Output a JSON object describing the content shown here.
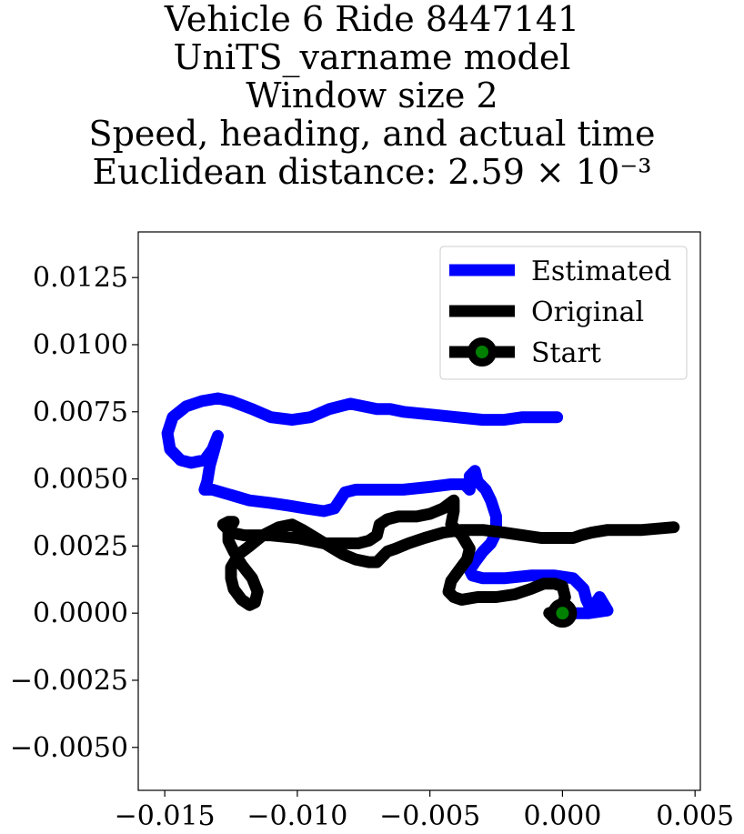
{
  "chart_data": {
    "type": "line",
    "title_lines": [
      "Vehicle 6 Ride 8447141",
      "UniTS_varname model",
      "Window size 2",
      "Speed, heading, and actual time",
      "Euclidean distance: 2.59 × 10⁻³"
    ],
    "xlabel": "",
    "ylabel": "",
    "xlim": [
      -0.016,
      0.0052
    ],
    "ylim": [
      -0.0066,
      0.0142
    ],
    "x_ticks": [
      -0.015,
      -0.01,
      -0.005,
      0.0,
      0.005
    ],
    "x_tick_labels": [
      "−0.015",
      "−0.010",
      "−0.005",
      "0.000",
      "0.005"
    ],
    "y_ticks": [
      0.0125,
      0.01,
      0.0075,
      0.005,
      0.0025,
      0.0,
      -0.0025,
      -0.005
    ],
    "y_tick_labels": [
      "0.0125",
      "0.0100",
      "0.0075",
      "0.0050",
      "0.0025",
      "0.0000",
      "−0.0025",
      "−0.0050"
    ],
    "grid": false,
    "legend_position": "upper-right",
    "series": [
      {
        "name": "Estimated",
        "color": "#0000ff",
        "points": [
          [
            -0.0002,
            0.0073
          ],
          [
            -0.0015,
            0.0073
          ],
          [
            -0.0022,
            0.0072
          ],
          [
            -0.003,
            0.0072
          ],
          [
            -0.004,
            0.0073
          ],
          [
            -0.005,
            0.0074
          ],
          [
            -0.006,
            0.0075
          ],
          [
            -0.0065,
            0.0076
          ],
          [
            -0.007,
            0.0076
          ],
          [
            -0.008,
            0.0078
          ],
          [
            -0.0088,
            0.0076
          ],
          [
            -0.0095,
            0.0073
          ],
          [
            -0.0102,
            0.0072
          ],
          [
            -0.011,
            0.0073
          ],
          [
            -0.0117,
            0.0076
          ],
          [
            -0.0125,
            0.0079
          ],
          [
            -0.013,
            0.008
          ],
          [
            -0.0136,
            0.0079
          ],
          [
            -0.0142,
            0.0077
          ],
          [
            -0.0147,
            0.0073
          ],
          [
            -0.0149,
            0.0067
          ],
          [
            -0.0148,
            0.0061
          ],
          [
            -0.0144,
            0.0057
          ],
          [
            -0.014,
            0.0056
          ],
          [
            -0.0135,
            0.0057
          ],
          [
            -0.0132,
            0.0061
          ],
          [
            -0.013,
            0.0066
          ],
          [
            -0.0131,
            0.0062
          ],
          [
            -0.0133,
            0.0055
          ],
          [
            -0.0134,
            0.0049
          ],
          [
            -0.0135,
            0.0046
          ],
          [
            -0.0132,
            0.0046
          ],
          [
            -0.0125,
            0.0044
          ],
          [
            -0.0118,
            0.0042
          ],
          [
            -0.011,
            0.0041
          ],
          [
            -0.0103,
            0.004
          ],
          [
            -0.0097,
            0.0039
          ],
          [
            -0.009,
            0.0038
          ],
          [
            -0.0086,
            0.0039
          ],
          [
            -0.0084,
            0.0042
          ],
          [
            -0.0082,
            0.0045
          ],
          [
            -0.0078,
            0.0046
          ],
          [
            -0.007,
            0.0046
          ],
          [
            -0.006,
            0.0046
          ],
          [
            -0.005,
            0.0047
          ],
          [
            -0.0042,
            0.0048
          ],
          [
            -0.0037,
            0.0048
          ],
          [
            -0.0035,
            0.0046
          ],
          [
            -0.0035,
            0.0051
          ],
          [
            -0.0033,
            0.0053
          ],
          [
            -0.0032,
            0.0049
          ],
          [
            -0.0029,
            0.0046
          ],
          [
            -0.0027,
            0.0042
          ],
          [
            -0.0025,
            0.0036
          ],
          [
            -0.0025,
            0.003
          ],
          [
            -0.0027,
            0.0026
          ],
          [
            -0.003,
            0.0023
          ],
          [
            -0.0033,
            0.0019
          ],
          [
            -0.0035,
            0.0016
          ],
          [
            -0.0034,
            0.0014
          ],
          [
            -0.003,
            0.0013
          ],
          [
            -0.0022,
            0.0013
          ],
          [
            -0.0012,
            0.0014
          ],
          [
            -0.0003,
            0.0014
          ],
          [
            0.0004,
            0.0013
          ],
          [
            0.0008,
            0.0009
          ],
          [
            0.0009,
            0.0005
          ],
          [
            0.001,
            0.0003
          ],
          [
            0.0012,
            0.0003
          ],
          [
            0.0014,
            0.0006
          ],
          [
            0.0017,
            0.0001
          ],
          [
            0.001,
            0.0
          ],
          [
            0.0003,
            0.0
          ],
          [
            0.0,
            0.0
          ]
        ]
      },
      {
        "name": "Original",
        "color": "#000000",
        "points": [
          [
            0.0042,
            0.0032
          ],
          [
            0.003,
            0.0031
          ],
          [
            0.0017,
            0.0031
          ],
          [
            0.0011,
            0.003
          ],
          [
            0.0007,
            0.0029
          ],
          [
            0.0004,
            0.0028
          ],
          [
            -0.0002,
            0.0028
          ],
          [
            -0.0008,
            0.0028
          ],
          [
            -0.0015,
            0.0029
          ],
          [
            -0.0022,
            0.003
          ],
          [
            -0.003,
            0.0031
          ],
          [
            -0.0038,
            0.0031
          ],
          [
            -0.0045,
            0.003
          ],
          [
            -0.0052,
            0.0028
          ],
          [
            -0.0058,
            0.0026
          ],
          [
            -0.0063,
            0.0024
          ],
          [
            -0.0066,
            0.0023
          ],
          [
            -0.0068,
            0.0021
          ],
          [
            -0.007,
            0.0019
          ],
          [
            -0.0073,
            0.0019
          ],
          [
            -0.0078,
            0.002
          ],
          [
            -0.0083,
            0.0022
          ],
          [
            -0.0088,
            0.0025
          ],
          [
            -0.0093,
            0.0028
          ],
          [
            -0.0098,
            0.0031
          ],
          [
            -0.0102,
            0.0033
          ],
          [
            -0.0107,
            0.0032
          ],
          [
            -0.0113,
            0.0029
          ],
          [
            -0.0118,
            0.0025
          ],
          [
            -0.0122,
            0.0022
          ],
          [
            -0.0125,
            0.0017
          ],
          [
            -0.0125,
            0.0013
          ],
          [
            -0.0124,
            0.0009
          ],
          [
            -0.0121,
            0.0005
          ],
          [
            -0.0118,
            0.0003
          ],
          [
            -0.0116,
            0.0004
          ],
          [
            -0.0115,
            0.0008
          ],
          [
            -0.0117,
            0.0013
          ],
          [
            -0.0121,
            0.0018
          ],
          [
            -0.0124,
            0.0023
          ],
          [
            -0.0126,
            0.0027
          ],
          [
            -0.0126,
            0.0031
          ],
          [
            -0.0124,
            0.0034
          ],
          [
            -0.0126,
            0.0034
          ],
          [
            -0.0128,
            0.0033
          ],
          [
            -0.0125,
            0.003
          ],
          [
            -0.012,
            0.0029
          ],
          [
            -0.011,
            0.0029
          ],
          [
            -0.01,
            0.0028
          ],
          [
            -0.009,
            0.0026
          ],
          [
            -0.0083,
            0.0026
          ],
          [
            -0.0077,
            0.0026
          ],
          [
            -0.0073,
            0.0027
          ],
          [
            -0.007,
            0.0029
          ],
          [
            -0.0069,
            0.0033
          ],
          [
            -0.0066,
            0.0035
          ],
          [
            -0.0062,
            0.0036
          ],
          [
            -0.0055,
            0.0036
          ],
          [
            -0.005,
            0.0037
          ],
          [
            -0.0045,
            0.0039
          ],
          [
            -0.0041,
            0.0042
          ],
          [
            -0.0041,
            0.0038
          ],
          [
            -0.0042,
            0.0033
          ],
          [
            -0.0038,
            0.0029
          ],
          [
            -0.0035,
            0.0024
          ],
          [
            -0.0036,
            0.002
          ],
          [
            -0.0039,
            0.0016
          ],
          [
            -0.0042,
            0.0012
          ],
          [
            -0.0043,
            0.0008
          ],
          [
            -0.0041,
            0.0006
          ],
          [
            -0.0038,
            0.0005
          ],
          [
            -0.0032,
            0.0006
          ],
          [
            -0.0025,
            0.0006
          ],
          [
            -0.0018,
            0.0007
          ],
          [
            -0.0012,
            0.0009
          ],
          [
            -0.0007,
            0.0011
          ],
          [
            -0.0003,
            0.0011
          ],
          [
            0.0,
            0.001
          ],
          [
            0.0001,
            0.0006
          ],
          [
            0.0,
            0.0003
          ],
          [
            -0.0002,
            0.0001
          ],
          [
            -0.0005,
            0.0
          ],
          [
            -0.0003,
            -0.0002
          ],
          [
            0.0,
            0.0
          ]
        ]
      }
    ],
    "start_point": {
      "name": "Start",
      "x": 0.0,
      "y": 0.0,
      "fill_color": "#008000",
      "edge_color": "#000000"
    }
  }
}
